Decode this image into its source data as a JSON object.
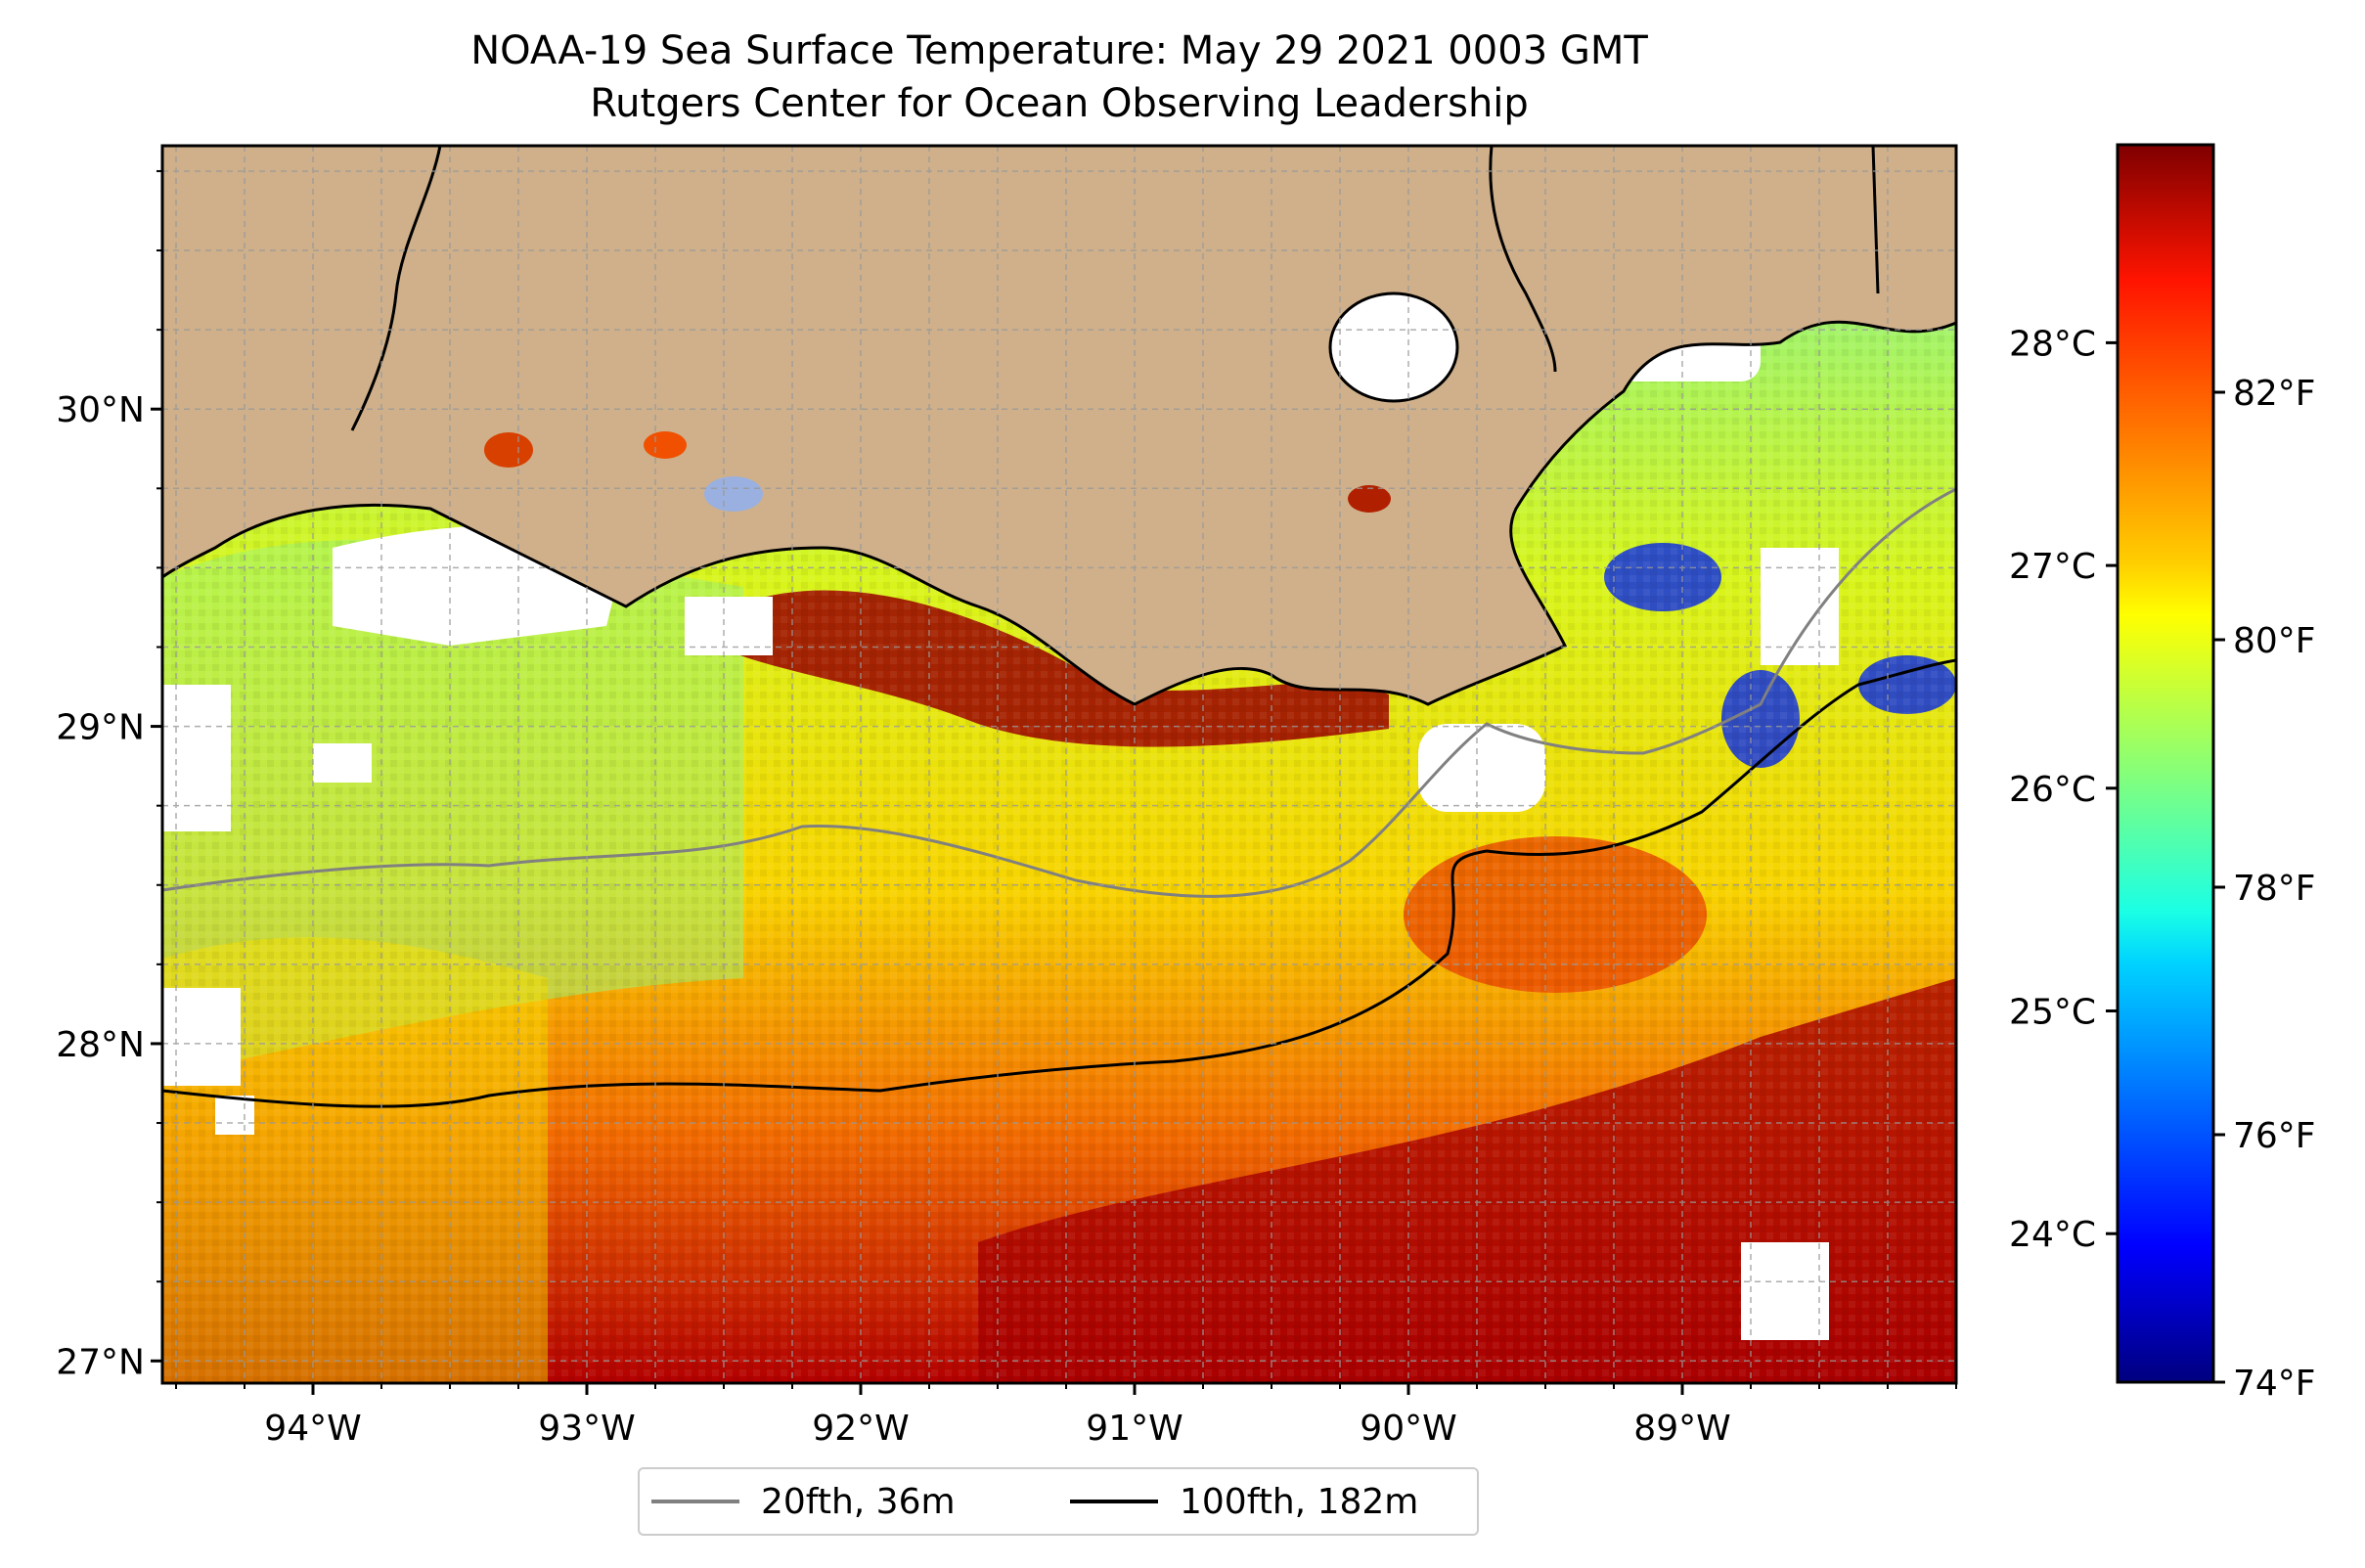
{
  "title": {
    "line1": "NOAA-19 Sea Surface Temperature: May 29 2021 0003 GMT",
    "line2": "Rutgers Center for Ocean Observing Leadership"
  },
  "map": {
    "lon_range": [
      -94.55,
      -88.0
    ],
    "lat_range": [
      26.93,
      30.83
    ],
    "lon_ticks": [
      "94°W",
      "93°W",
      "92°W",
      "91°W",
      "90°W",
      "89°W"
    ],
    "lat_ticks": [
      "27°N",
      "28°N",
      "29°N",
      "30°N"
    ],
    "land_color": "#cfb08a",
    "water_colormap": "jet",
    "gridlines": true
  },
  "colorbar": {
    "celsius_ticks": [
      "24°C",
      "25°C",
      "26°C",
      "27°C",
      "28°C"
    ],
    "fahrenheit_ticks": [
      "74°F",
      "76°F",
      "78°F",
      "80°F",
      "82°F"
    ],
    "range_f": [
      74,
      84
    ]
  },
  "legend": {
    "items": [
      {
        "label": "20fth, 36m",
        "color": "#808080"
      },
      {
        "label": "100fth, 182m",
        "color": "#000000"
      }
    ]
  }
}
